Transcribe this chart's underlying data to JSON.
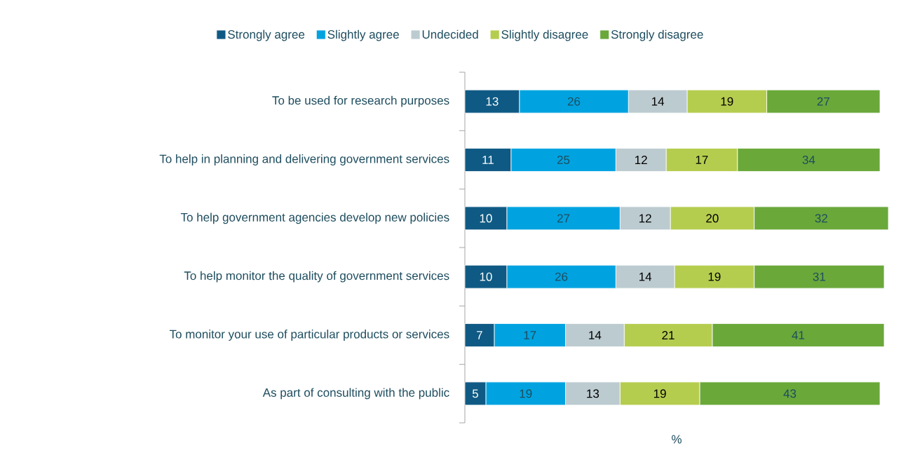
{
  "chart_data": {
    "type": "bar",
    "orientation": "horizontal",
    "stacked": true,
    "data_labels": true,
    "legend": "top",
    "tick_labels": "y",
    "xlabel": "%",
    "categories": [
      "To be used for research purposes",
      "To help in planning and delivering government services",
      "To help government agencies develop new policies",
      "To help monitor the quality of government services",
      "To monitor your use of particular products or services",
      "As part of consulting with the public"
    ],
    "xlim": [
      0,
      101
    ],
    "series": [
      {
        "name": "Strongly agree",
        "color": "#0f5a84",
        "values": [
          13,
          11,
          10,
          10,
          7,
          5
        ]
      },
      {
        "name": "Slightly agree",
        "color": "#00a3e0",
        "values": [
          26,
          25,
          27,
          26,
          17,
          19
        ]
      },
      {
        "name": "Undecided",
        "color": "#bccbd0",
        "values": [
          14,
          12,
          12,
          14,
          14,
          13
        ]
      },
      {
        "name": "Slightly disagree",
        "color": "#b5cd4f",
        "values": [
          19,
          17,
          20,
          19,
          21,
          19
        ]
      },
      {
        "name": "Strongly disagree",
        "color": "#6aa83a",
        "values": [
          27,
          34,
          32,
          31,
          41,
          43
        ]
      }
    ]
  }
}
